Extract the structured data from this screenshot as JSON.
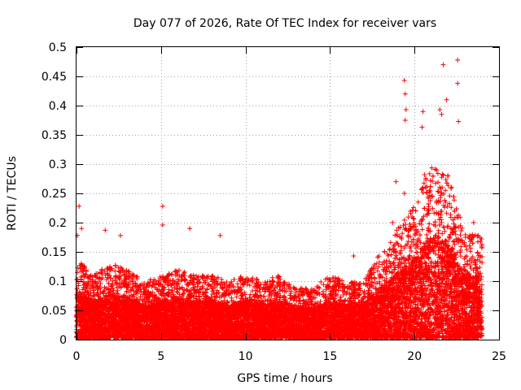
{
  "chart_data": {
    "type": "scatter",
    "title": "Day 077 of 2026, Rate Of TEC Index for receiver vars",
    "xlabel": "GPS time / hours",
    "ylabel": "ROTI / TECUs",
    "xlim": [
      0,
      25
    ],
    "ylim": [
      0,
      0.5
    ],
    "grid": true,
    "marker": "+",
    "color": "#ff0000",
    "x_ticks": [
      "0",
      "5",
      "10",
      "15",
      "20",
      "25"
    ],
    "y_ticks": [
      "0",
      "0.05",
      "0.1",
      "0.15",
      "0.2",
      "0.25",
      "0.3",
      "0.35",
      "0.4",
      "0.45",
      "0.5"
    ],
    "x_tick_values": [
      0,
      5,
      10,
      15,
      20,
      25
    ],
    "y_tick_values": [
      0,
      0.05,
      0.1,
      0.15,
      0.2,
      0.25,
      0.3,
      0.35,
      0.4,
      0.45,
      0.5
    ],
    "series": [
      {
        "name": "ROTI",
        "points_per_hour_estimate": 600,
        "hourly_typical_max": [
          0.14,
          0.11,
          0.13,
          0.12,
          0.1,
          0.11,
          0.12,
          0.11,
          0.11,
          0.1,
          0.11,
          0.1,
          0.11,
          0.09,
          0.09,
          0.11,
          0.1,
          0.1,
          0.15,
          0.19,
          0.23,
          0.3,
          0.28,
          0.18
        ],
        "notable_points": [
          {
            "x": 0.15,
            "y": 0.228
          },
          {
            "x": 0.05,
            "y": 0.178
          },
          {
            "x": 0.3,
            "y": 0.19
          },
          {
            "x": 1.7,
            "y": 0.187
          },
          {
            "x": 2.6,
            "y": 0.178
          },
          {
            "x": 5.1,
            "y": 0.228
          },
          {
            "x": 5.1,
            "y": 0.196
          },
          {
            "x": 6.7,
            "y": 0.19
          },
          {
            "x": 8.5,
            "y": 0.178
          },
          {
            "x": 16.4,
            "y": 0.143
          },
          {
            "x": 18.9,
            "y": 0.27
          },
          {
            "x": 18.7,
            "y": 0.2
          },
          {
            "x": 19.4,
            "y": 0.443
          },
          {
            "x": 19.45,
            "y": 0.42
          },
          {
            "x": 19.5,
            "y": 0.393
          },
          {
            "x": 19.45,
            "y": 0.375
          },
          {
            "x": 19.4,
            "y": 0.25
          },
          {
            "x": 20.5,
            "y": 0.39
          },
          {
            "x": 20.45,
            "y": 0.363
          },
          {
            "x": 20.6,
            "y": 0.282
          },
          {
            "x": 21.5,
            "y": 0.393
          },
          {
            "x": 21.6,
            "y": 0.385
          },
          {
            "x": 21.7,
            "y": 0.47
          },
          {
            "x": 21.9,
            "y": 0.41
          },
          {
            "x": 22.55,
            "y": 0.478
          },
          {
            "x": 22.55,
            "y": 0.438
          },
          {
            "x": 22.6,
            "y": 0.373
          },
          {
            "x": 23.5,
            "y": 0.2
          }
        ]
      }
    ]
  }
}
